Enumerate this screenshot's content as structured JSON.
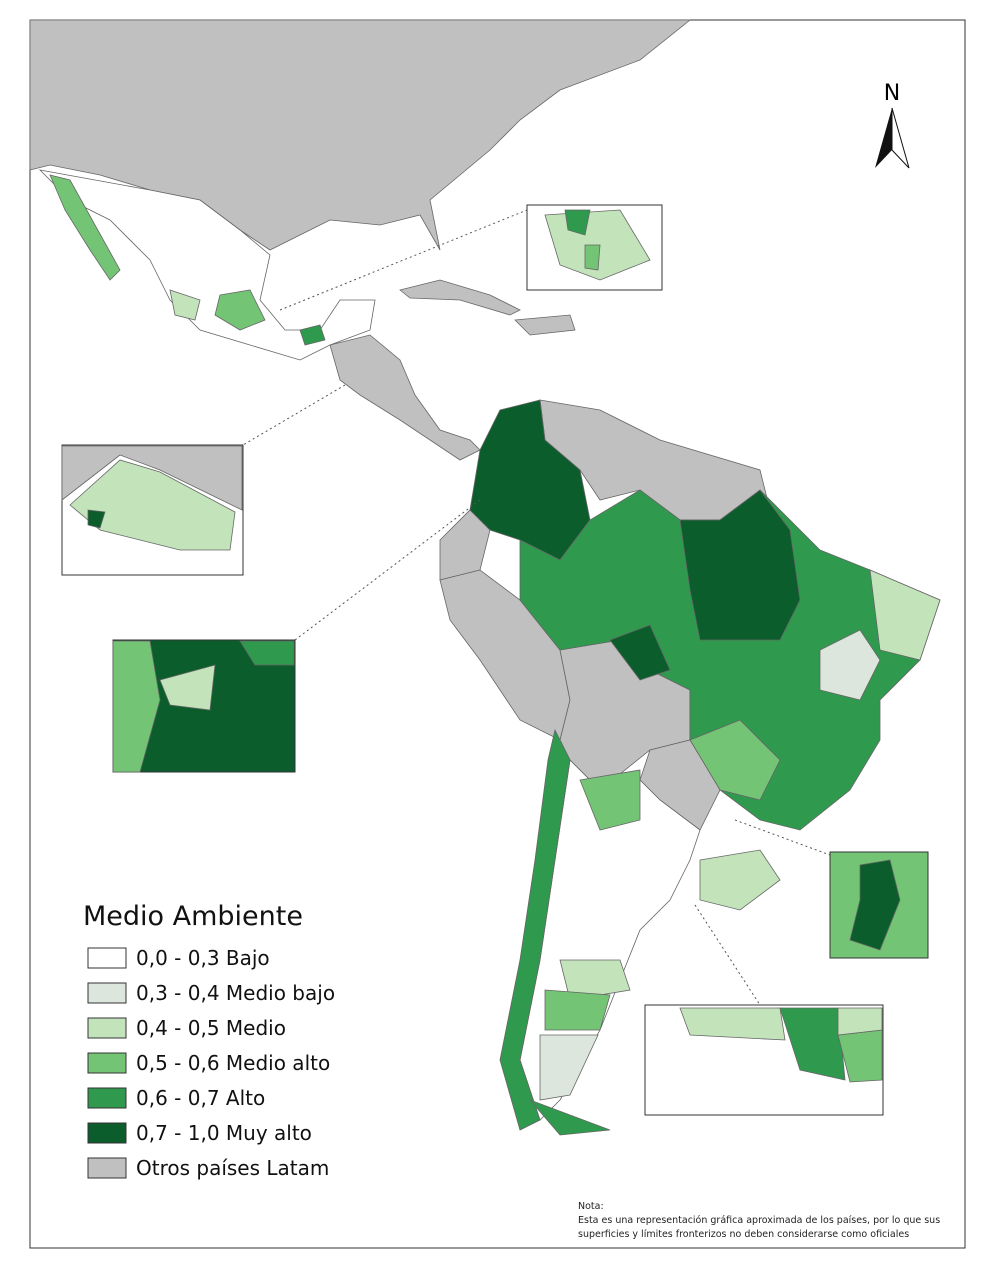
{
  "north": "N",
  "legend": {
    "title": "Medio Ambiente",
    "items": [
      {
        "label": "0,0 - 0,3 Bajo",
        "color": "#ffffff"
      },
      {
        "label": "0,3 - 0,4 Medio bajo",
        "color": "#dce6dc"
      },
      {
        "label": "0,4 - 0,5 Medio",
        "color": "#c3e4bb"
      },
      {
        "label": "0,5 - 0,6 Medio alto",
        "color": "#74c476"
      },
      {
        "label": "0,6 - 0,7 Alto",
        "color": "#2f9a4e"
      },
      {
        "label": "0,7 - 1,0 Muy alto",
        "color": "#0b5e2c"
      },
      {
        "label": "Otros países Latam",
        "color": "#c0c0c0"
      }
    ]
  },
  "note": {
    "heading": "Nota:",
    "lines": [
      "Esta es una representación gráfica aproximada de los países, por lo que sus",
      "superficies y límites fronterizos no deben considerarse como oficiales"
    ]
  }
}
